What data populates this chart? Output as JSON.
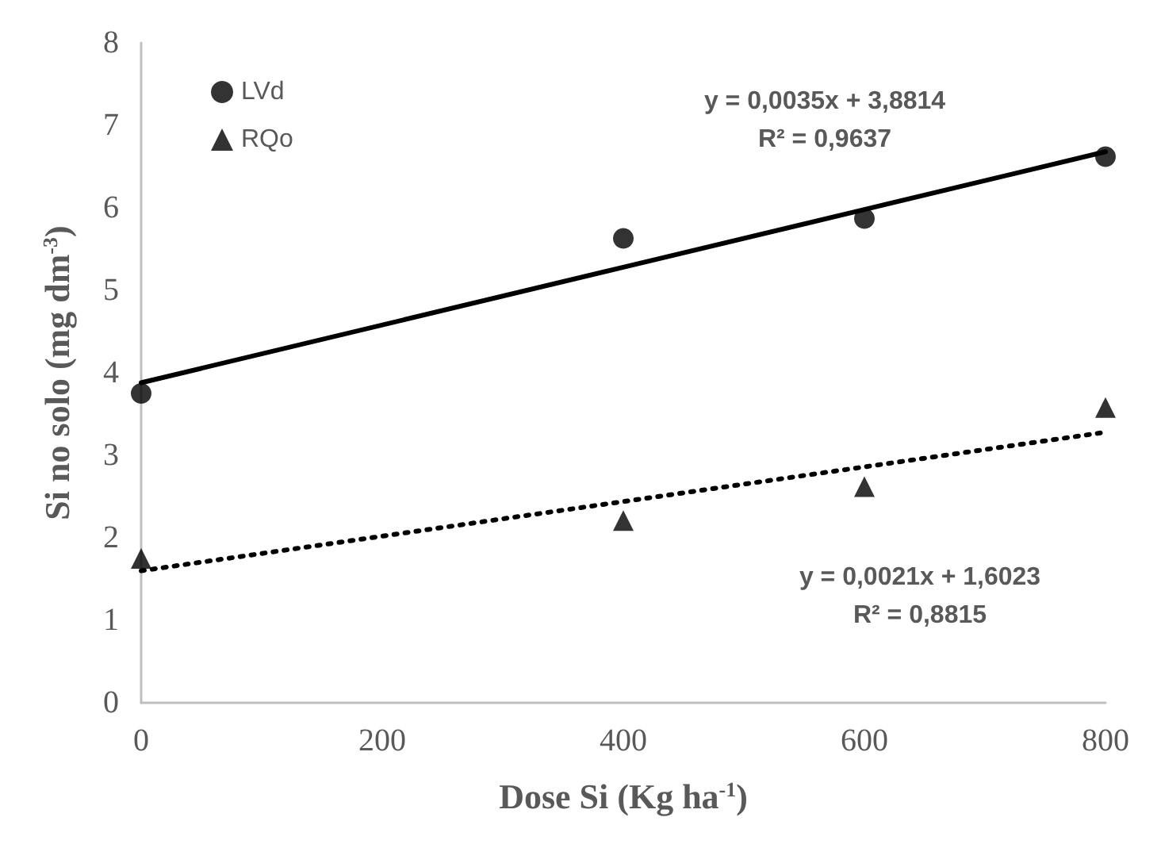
{
  "chart_data": {
    "type": "scatter",
    "xlabel": "Dose Si (Kg ha$^{-1}$)",
    "ylabel": "Si no solo (mg dm$^{-3}$)",
    "x": [
      0,
      400,
      600,
      800
    ],
    "xlim": [
      0,
      800
    ],
    "xticks": [
      0,
      200,
      400,
      600,
      800
    ],
    "ylim": [
      0,
      8
    ],
    "yticks": [
      0,
      1,
      2,
      3,
      4,
      5,
      6,
      7,
      8
    ],
    "legend": "top left",
    "annotations": [
      "y = 0,0035x + 3,8814\nR² = 0,9637",
      "y = 0,0021x + 1,6023\nR² = 0,8815"
    ],
    "series": [
      {
        "name": "LVd",
        "color": "#000000",
        "marker": "circle",
        "values": [
          3.75,
          5.63,
          5.87,
          6.62
        ]
      },
      {
        "name": "RQo",
        "color": "#000000",
        "marker": "triangle",
        "values": [
          1.75,
          2.21,
          2.62,
          3.58
        ]
      },
      {
        "type": "line",
        "color": "#000000",
        "marker": "none",
        "line_style": "solid",
        "values": [
          3.88,
          5.28,
          5.98,
          6.68
        ]
      },
      {
        "type": "line",
        "color": "#000000",
        "marker": "none",
        "line_style": "dotted",
        "values": [
          1.6,
          2.44,
          2.86,
          3.28
        ]
      }
    ]
  }
}
